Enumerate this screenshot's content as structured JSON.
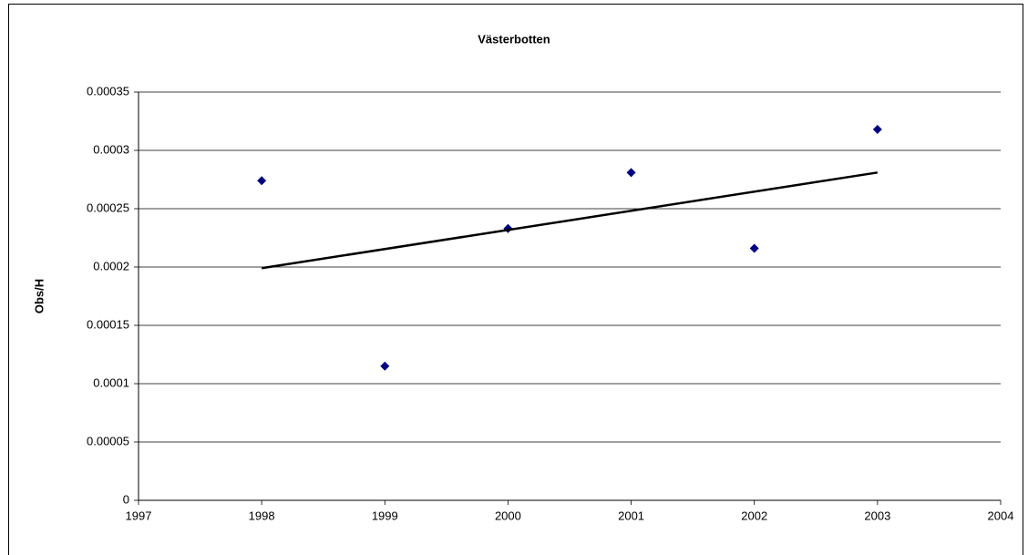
{
  "chart_data": {
    "type": "scatter",
    "title": "Västerbotten",
    "y_label": "Obs/H",
    "series": [
      {
        "color": "#000080",
        "marker": "diamond",
        "x": [
          1998,
          1999,
          2000,
          2001,
          2002,
          2003
        ],
        "values": [
          0.000274,
          0.000115,
          0.000233,
          0.000281,
          0.000216,
          0.000318
        ]
      },
      {
        "color": "#000000",
        "line": true,
        "x": [
          1998,
          2003
        ],
        "values": [
          0.000199,
          0.000281
        ]
      }
    ],
    "xlim": [
      1997,
      2004
    ],
    "xticks": [
      1997,
      1998,
      1999,
      2000,
      2001,
      2002,
      2003,
      2004
    ],
    "ylim": [
      0,
      0.00035
    ],
    "yticks": [
      0,
      5e-05,
      0.0001,
      0.00015,
      0.0002,
      0.00025,
      0.0003,
      0.00035
    ],
    "grid": true
  }
}
